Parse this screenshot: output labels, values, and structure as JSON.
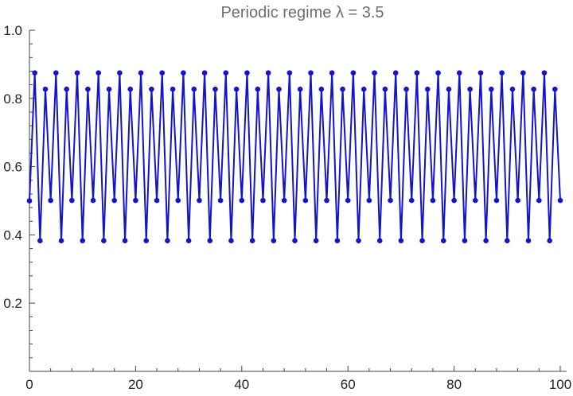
{
  "chart_data": {
    "type": "line",
    "title": "Periodic regime λ = 3.5",
    "xlabel": "",
    "ylabel": "",
    "xlim": [
      0,
      100
    ],
    "ylim": [
      0,
      1.0
    ],
    "x_ticks": [
      0,
      20,
      40,
      60,
      80,
      100
    ],
    "x_tick_labels": [
      "0",
      "20",
      "40",
      "60",
      "80",
      "100"
    ],
    "y_ticks": [
      0.2,
      0.4,
      0.6,
      0.8,
      1.0
    ],
    "y_tick_labels": [
      "0.2",
      "0.4",
      "0.6",
      "0.8",
      "1.0"
    ],
    "grid": false,
    "color": "#1414c8",
    "series": [
      {
        "x": [
          0,
          1,
          2,
          3,
          4,
          5,
          6,
          7,
          8,
          9,
          10,
          11,
          12,
          13,
          14,
          15,
          16,
          17,
          18,
          19,
          20,
          21,
          22,
          23,
          24,
          25,
          26,
          27,
          28,
          29,
          30,
          31,
          32,
          33,
          34,
          35,
          36,
          37,
          38,
          39,
          40,
          41,
          42,
          43,
          44,
          45,
          46,
          47,
          48,
          49,
          50,
          51,
          52,
          53,
          54,
          55,
          56,
          57,
          58,
          59,
          60,
          61,
          62,
          63,
          64,
          65,
          66,
          67,
          68,
          69,
          70,
          71,
          72,
          73,
          74,
          75,
          76,
          77,
          78,
          79,
          80,
          81,
          82,
          83,
          84,
          85,
          86,
          87,
          88,
          89,
          90,
          91,
          92,
          93,
          94,
          95,
          96,
          97,
          98,
          99,
          100
        ],
        "values": [
          0.5,
          0.875,
          0.383,
          0.827,
          0.501,
          0.875,
          0.383,
          0.827,
          0.501,
          0.875,
          0.383,
          0.827,
          0.501,
          0.875,
          0.383,
          0.827,
          0.501,
          0.875,
          0.383,
          0.827,
          0.501,
          0.875,
          0.383,
          0.827,
          0.501,
          0.875,
          0.383,
          0.827,
          0.501,
          0.875,
          0.383,
          0.827,
          0.501,
          0.875,
          0.383,
          0.827,
          0.501,
          0.875,
          0.383,
          0.827,
          0.501,
          0.875,
          0.383,
          0.827,
          0.501,
          0.875,
          0.383,
          0.827,
          0.501,
          0.875,
          0.383,
          0.827,
          0.501,
          0.875,
          0.383,
          0.827,
          0.501,
          0.875,
          0.383,
          0.827,
          0.501,
          0.875,
          0.383,
          0.827,
          0.501,
          0.875,
          0.383,
          0.827,
          0.501,
          0.875,
          0.383,
          0.827,
          0.501,
          0.875,
          0.383,
          0.827,
          0.501,
          0.875,
          0.383,
          0.827,
          0.501,
          0.875,
          0.383,
          0.827,
          0.501,
          0.875,
          0.383,
          0.827,
          0.501,
          0.875,
          0.383,
          0.827,
          0.501,
          0.875,
          0.383,
          0.827,
          0.501,
          0.875,
          0.383,
          0.827,
          0.501
        ]
      }
    ]
  }
}
